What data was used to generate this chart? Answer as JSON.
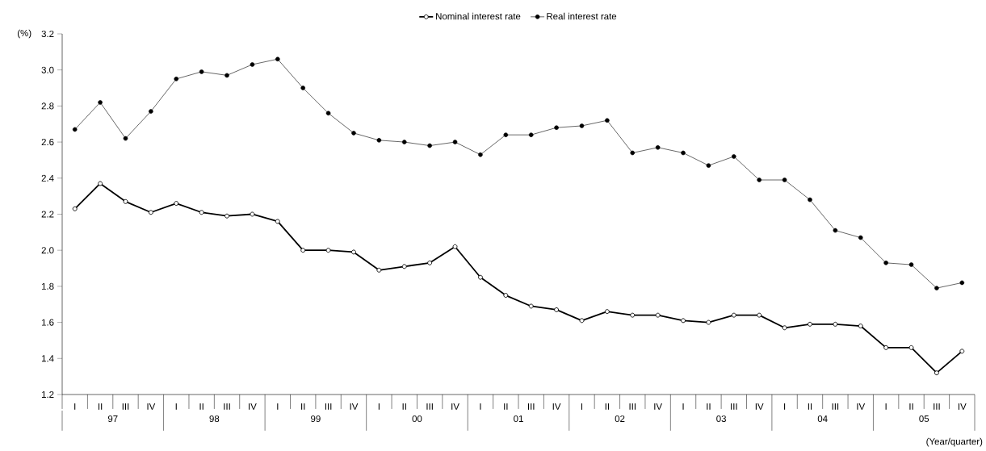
{
  "chart_data": {
    "type": "line",
    "ylabel": "(%)",
    "xlabel": "(Year/quarter)",
    "categories": [
      "I",
      "II",
      "III",
      "IV",
      "I",
      "II",
      "III",
      "IV",
      "I",
      "II",
      "III",
      "IV",
      "I",
      "II",
      "III",
      "IV",
      "I",
      "II",
      "III",
      "IV",
      "I",
      "II",
      "III",
      "IV",
      "I",
      "II",
      "III",
      "IV",
      "I",
      "II",
      "III",
      "IV",
      "I",
      "II",
      "III",
      "IV"
    ],
    "annotations": [
      "97",
      "98",
      "99",
      "00",
      "01",
      "02",
      "03",
      "04",
      "05"
    ],
    "series": [
      {
        "name": "Nominal interest rate",
        "color": "#000000",
        "values": [
          2.23,
          2.37,
          2.27,
          2.21,
          2.26,
          2.21,
          2.19,
          2.2,
          2.16,
          2.0,
          2.0,
          1.99,
          1.89,
          1.91,
          1.93,
          2.02,
          1.85,
          1.75,
          1.69,
          1.67,
          1.61,
          1.66,
          1.64,
          1.64,
          1.61,
          1.6,
          1.64,
          1.64,
          1.57,
          1.59,
          1.59,
          1.58,
          1.46,
          1.46,
          1.32,
          1.44
        ]
      },
      {
        "name": "Real interest rate",
        "color": "#000000",
        "values": [
          2.67,
          2.82,
          2.62,
          2.77,
          2.95,
          2.99,
          2.97,
          3.03,
          3.06,
          2.9,
          2.76,
          2.65,
          2.61,
          2.6,
          2.58,
          2.6,
          2.53,
          2.64,
          2.64,
          2.68,
          2.69,
          2.72,
          2.54,
          2.57,
          2.54,
          2.47,
          2.52,
          2.39,
          2.39,
          2.28,
          2.11,
          2.07,
          1.93,
          1.92,
          1.79,
          1.82
        ]
      }
    ],
    "ylim": [
      1.2,
      3.2
    ],
    "yticks": [
      1.2,
      1.4,
      1.6,
      1.8,
      {
        "value": 2.0,
        "label": "2.0"
      },
      2.2,
      2.4,
      2.6,
      2.8,
      {
        "value": 3.0,
        "label": "3.0"
      },
      3.2
    ],
    "marker": "circle",
    "grid": false,
    "legend": "top",
    "line_style": "solid"
  }
}
